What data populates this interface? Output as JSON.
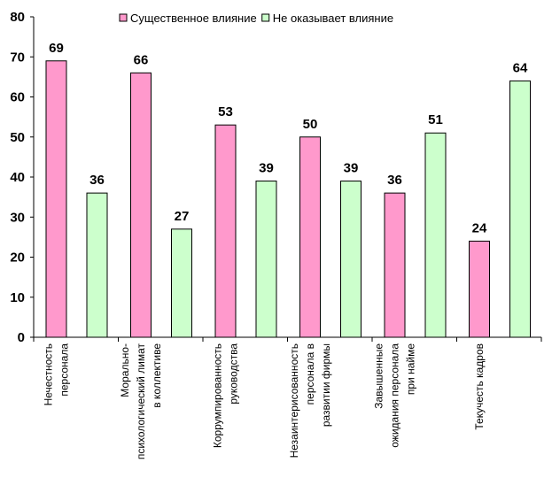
{
  "chart_data": {
    "type": "bar",
    "title": "",
    "xlabel": "",
    "ylabel": "",
    "ylim": [
      0,
      80
    ],
    "yticks": [
      0,
      10,
      20,
      30,
      40,
      50,
      60,
      70,
      80
    ],
    "grid": false,
    "legend_position": "top-center",
    "categories": [
      [
        "Нечестность",
        "персонала"
      ],
      [
        "Морально-",
        "психологический лимат",
        "в коллективе"
      ],
      [
        "Коррумпированность",
        "руководства"
      ],
      [
        "Незаинтерисованность",
        "персонала в",
        "развитии фирмы"
      ],
      [
        "Завышенные",
        "ожидания персонала",
        "при найме"
      ],
      [
        "Текучесть кадров"
      ]
    ],
    "series": [
      {
        "name": "Существенное влияние",
        "color": "#ff99cc",
        "values": [
          69,
          66,
          53,
          50,
          36,
          24
        ]
      },
      {
        "name": "Не оказывает влияние",
        "color": "#ccffcc",
        "values": [
          36,
          27,
          39,
          39,
          51,
          64
        ]
      }
    ]
  }
}
